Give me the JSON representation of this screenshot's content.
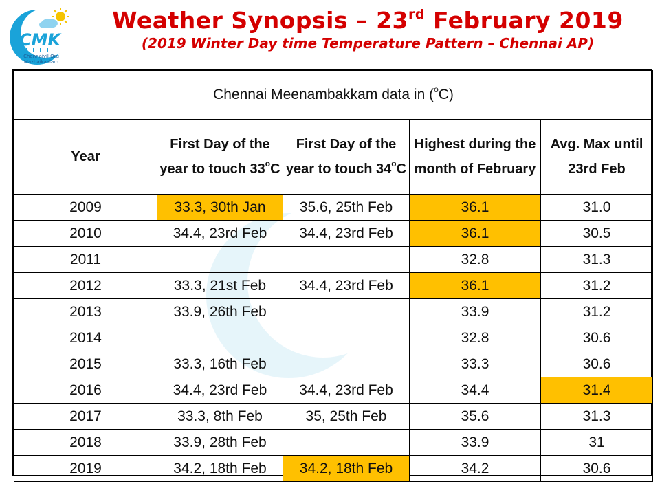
{
  "header": {
    "title_main": "Weather Synopsis – 23",
    "title_sup": "rd",
    "title_tail": " February 2019",
    "subtitle": "(2019 Winter Day time Temperature Pattern – Chennai AP)"
  },
  "logo": {
    "text": "CMK",
    "tagline_1": "Chennaiyil Oru",
    "tagline_2": "Mazhaikaalam"
  },
  "table": {
    "caption_pre": "Chennai Meenambakkam data in (",
    "caption_deg": "o",
    "caption_post": "C)",
    "columns": {
      "year": "Year",
      "c33_l1": "First Day of the",
      "c33_l2a": "year to touch 33",
      "c33_deg": "o",
      "c33_l2b": "C",
      "c34_l1": "First Day of the",
      "c34_l2a": "year to touch 34",
      "c34_deg": "o",
      "c34_l2b": "C",
      "feb_l1": "Highest during the",
      "feb_l2": "month of February",
      "avg_l1": "Avg. Max until",
      "avg_l2": "23rd Feb"
    },
    "rows": [
      {
        "year": "2009",
        "c33": "33.3, 30th Jan",
        "c34": "35.6, 25th Feb",
        "feb_high": "36.1",
        "avg_max": "31.0"
      },
      {
        "year": "2010",
        "c33": "34.4, 23rd Feb",
        "c34": "34.4, 23rd Feb",
        "feb_high": "36.1",
        "avg_max": "30.5"
      },
      {
        "year": "2011",
        "c33": "",
        "c34": "",
        "feb_high": "32.8",
        "avg_max": "31.3"
      },
      {
        "year": "2012",
        "c33": "33.3, 21st Feb",
        "c34": "34.4, 23rd Feb",
        "feb_high": "36.1",
        "avg_max": "31.2"
      },
      {
        "year": "2013",
        "c33": "33.9, 26th Feb",
        "c34": "",
        "feb_high": "33.9",
        "avg_max": "31.2"
      },
      {
        "year": "2014",
        "c33": "",
        "c34": "",
        "feb_high": "32.8",
        "avg_max": "30.6"
      },
      {
        "year": "2015",
        "c33": "33.3, 16th Feb",
        "c34": "",
        "feb_high": "33.3",
        "avg_max": "30.6"
      },
      {
        "year": "2016",
        "c33": "34.4, 23rd Feb",
        "c34": "34.4, 23rd Feb",
        "feb_high": "34.4",
        "avg_max": "31.4"
      },
      {
        "year": "2017",
        "c33": "33.3, 8th Feb",
        "c34": "35, 25th Feb",
        "feb_high": "35.6",
        "avg_max": "31.3"
      },
      {
        "year": "2018",
        "c33": "33.9, 28th Feb",
        "c34": "",
        "feb_high": "33.9",
        "avg_max": "31"
      },
      {
        "year": "2019",
        "c33": "34.2, 18th Feb",
        "c34": "34.2, 18th Feb",
        "feb_high": "34.2",
        "avg_max": "30.6"
      }
    ]
  },
  "colors": {
    "title": "#d40000",
    "highlight": "#ffc000",
    "logo_blue": "#1aa3d9",
    "logo_sun": "#f5c400"
  }
}
